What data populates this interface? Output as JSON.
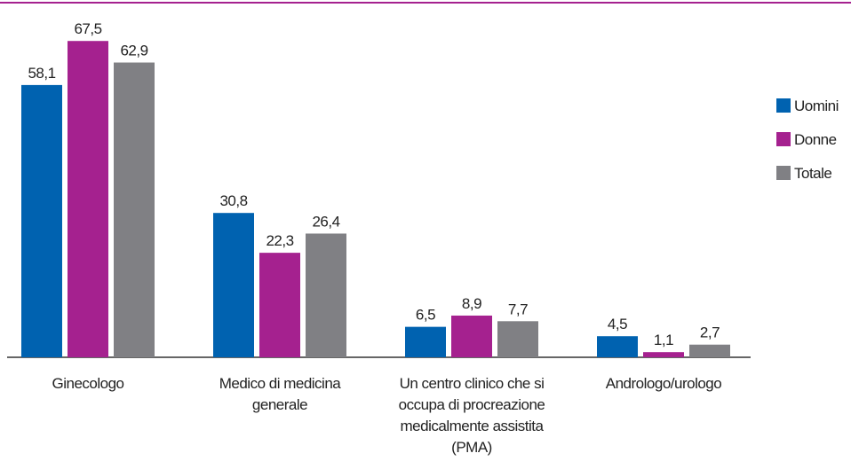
{
  "chart_data": {
    "type": "bar",
    "categories": [
      "Ginecologo",
      "Medico di medicina generale",
      "Un centro clinico che si occupa di procreazione medicalmente assistita (PMA)",
      "Andrologo/urologo"
    ],
    "series": [
      {
        "name": "Uomini",
        "color": "#0062b0",
        "values": [
          58.1,
          30.8,
          6.5,
          4.5
        ],
        "value_labels": [
          "58,1",
          "30,8",
          "6,5",
          "4,5"
        ]
      },
      {
        "name": "Donne",
        "color": "#a5218f",
        "values": [
          67.5,
          22.3,
          8.9,
          1.1
        ],
        "value_labels": [
          "67,5",
          "22,3",
          "8,9",
          "1,1"
        ]
      },
      {
        "name": "Totale",
        "color": "#808084",
        "values": [
          62.9,
          26.4,
          7.7,
          2.7
        ],
        "value_labels": [
          "62,9",
          "26,4",
          "7,7",
          "2,7"
        ]
      }
    ],
    "ylim": [
      0,
      70
    ],
    "legend": "right"
  }
}
